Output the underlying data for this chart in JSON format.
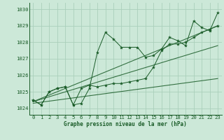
{
  "title": "Graphe pression niveau de la mer (hPa)",
  "bg_color": "#cce8d8",
  "grid_color": "#aacfbb",
  "line_color": "#1a5c28",
  "xlim": [
    -0.5,
    23.5
  ],
  "ylim": [
    1023.6,
    1030.4
  ],
  "yticks": [
    1024,
    1025,
    1026,
    1027,
    1028,
    1029,
    1030
  ],
  "xticks": [
    0,
    1,
    2,
    3,
    4,
    5,
    6,
    7,
    8,
    9,
    10,
    11,
    12,
    13,
    14,
    15,
    16,
    17,
    18,
    19,
    20,
    21,
    22,
    23
  ],
  "series1_x": [
    0,
    1,
    2,
    3,
    4,
    5,
    6,
    7,
    8,
    9,
    10,
    11,
    12,
    13,
    14,
    15,
    16,
    17,
    18,
    19,
    20,
    21,
    22,
    23
  ],
  "series1_y": [
    1024.5,
    1024.2,
    1025.0,
    1025.2,
    1025.3,
    1024.2,
    1024.3,
    1025.2,
    1027.4,
    1028.6,
    1028.2,
    1027.7,
    1027.7,
    1027.7,
    1027.1,
    1027.2,
    1027.6,
    1028.3,
    1028.1,
    1027.8,
    1029.3,
    1028.9,
    1028.7,
    1029.8
  ],
  "series2_x": [
    0,
    1,
    2,
    3,
    4,
    5,
    6,
    7,
    8,
    9,
    10,
    11,
    12,
    13,
    14,
    15,
    16,
    17,
    18,
    19,
    20,
    21,
    22,
    23
  ],
  "series2_y": [
    1024.5,
    1024.2,
    1025.0,
    1025.2,
    1025.3,
    1024.2,
    1025.2,
    1025.4,
    1025.3,
    1025.4,
    1025.5,
    1025.5,
    1025.6,
    1025.7,
    1025.8,
    1026.5,
    1027.5,
    1027.9,
    1027.9,
    1028.0,
    1028.3,
    1028.6,
    1028.8,
    1029.0
  ],
  "trend_lines": [
    {
      "x": [
        0,
        23
      ],
      "y": [
        1024.3,
        1025.8
      ]
    },
    {
      "x": [
        0,
        23
      ],
      "y": [
        1024.4,
        1027.8
      ]
    },
    {
      "x": [
        0,
        23
      ],
      "y": [
        1024.4,
        1029.0
      ]
    }
  ]
}
